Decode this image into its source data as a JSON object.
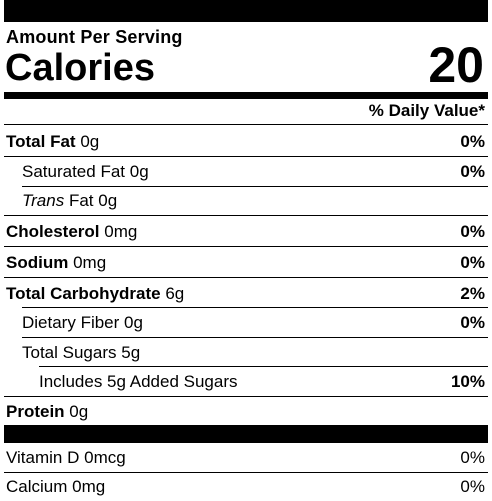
{
  "header": {
    "amount_per_serving": "Amount Per Serving",
    "calories_label": "Calories",
    "calories_value": "20",
    "daily_value_header": "% Daily Value*"
  },
  "nutrients": {
    "total_fat": {
      "name": "Total Fat",
      "amount": "0g",
      "dv": "0%"
    },
    "saturated_fat": {
      "name": "Saturated Fat",
      "amount": "0g",
      "dv": "0%"
    },
    "trans_fat": {
      "name": "Trans",
      "rest": "Fat",
      "amount": "0g"
    },
    "cholesterol": {
      "name": "Cholesterol",
      "amount": "0mg",
      "dv": "0%"
    },
    "sodium": {
      "name": "Sodium",
      "amount": "0mg",
      "dv": "0%"
    },
    "total_carbohydrate": {
      "name": "Total Carbohydrate",
      "amount": "6g",
      "dv": "2%"
    },
    "dietary_fiber": {
      "name": "Dietary Fiber",
      "amount": "0g",
      "dv": "0%"
    },
    "total_sugars": {
      "name": "Total Sugars",
      "amount": "5g"
    },
    "added_sugars": {
      "text": "Includes 5g Added Sugars",
      "dv": "10%"
    },
    "protein": {
      "name": "Protein",
      "amount": "0g"
    }
  },
  "vitamins": {
    "vitamin_d": {
      "name": "Vitamin D",
      "amount": "0mcg",
      "dv": "0%"
    },
    "calcium": {
      "name": "Calcium",
      "amount": "0mg",
      "dv": "0%"
    }
  }
}
